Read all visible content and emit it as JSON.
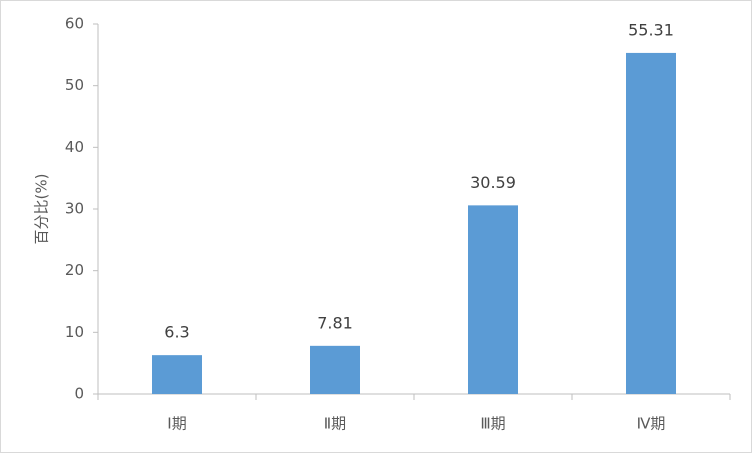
{
  "chart_data": {
    "type": "bar",
    "y_label": "百分比(%)",
    "categories": [
      "Ⅰ期",
      "Ⅱ期",
      "Ⅲ期",
      "Ⅳ期"
    ],
    "values": [
      6.3,
      7.81,
      30.59,
      55.31
    ],
    "color": "#5b9bd5",
    "ylim": [
      0,
      60
    ],
    "yticks": [
      0,
      10,
      20,
      30,
      40,
      50,
      60
    ],
    "grid": false,
    "data_labels": true
  }
}
